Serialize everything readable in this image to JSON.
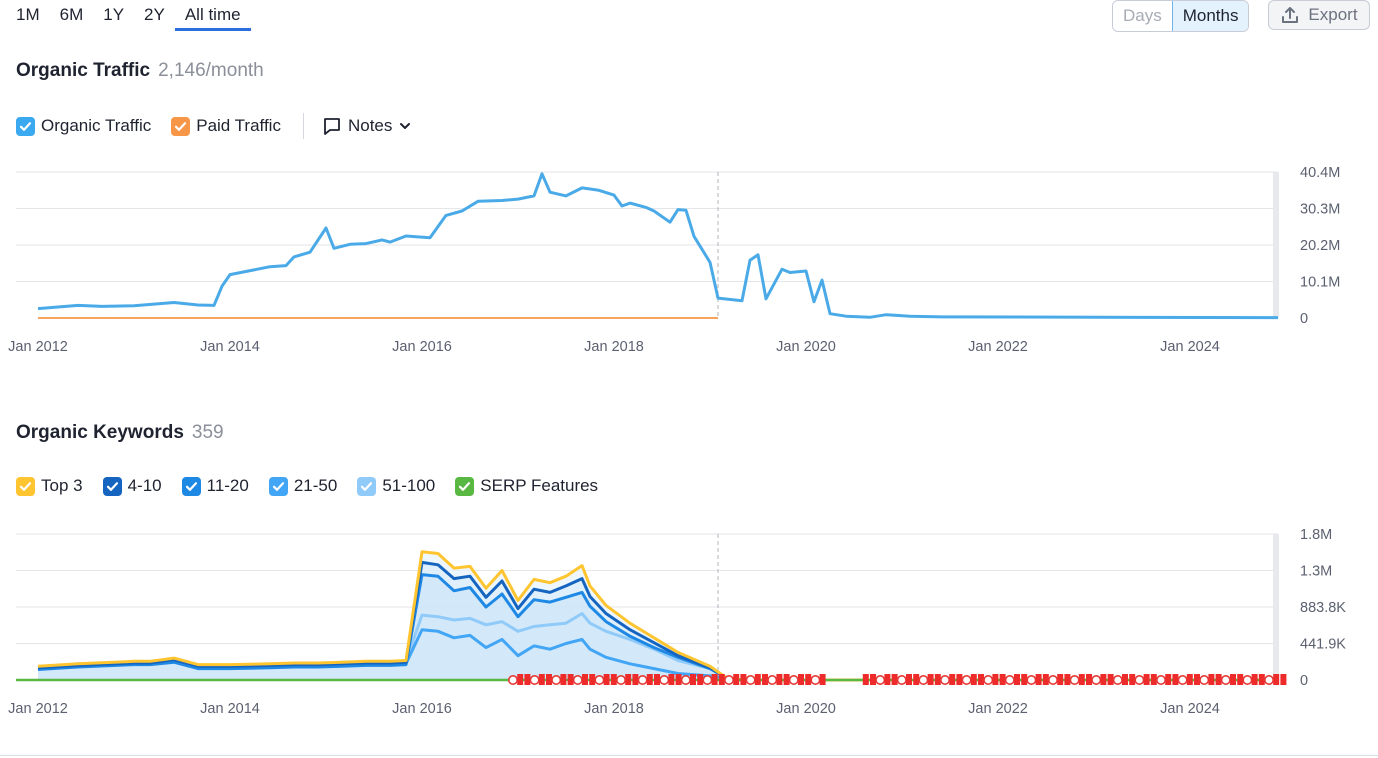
{
  "range_tabs": [
    "1M",
    "6M",
    "1Y",
    "2Y",
    "All time"
  ],
  "active_range": "All time",
  "granularity": {
    "days": "Days",
    "months": "Months",
    "active": "Months"
  },
  "export_label": "Export",
  "traffic": {
    "title": "Organic Traffic",
    "value": "2,146/month",
    "legend": [
      {
        "label": "Organic Traffic",
        "color": "#3aa9f0"
      },
      {
        "label": "Paid Traffic",
        "color": "#f79646"
      }
    ],
    "notes_label": "Notes"
  },
  "keywords": {
    "title": "Organic Keywords",
    "value": "359",
    "legend": [
      {
        "label": "Top 3",
        "color": "#ffc530"
      },
      {
        "label": "4-10",
        "color": "#1565c0"
      },
      {
        "label": "11-20",
        "color": "#1e88e5"
      },
      {
        "label": "21-50",
        "color": "#42a5f5"
      },
      {
        "label": "51-100",
        "color": "#90caf9"
      },
      {
        "label": "SERP Features",
        "color": "#59b842"
      }
    ]
  },
  "chart_data": [
    {
      "type": "line",
      "title": "Organic Traffic",
      "x_start": "2012-01",
      "x_end": "2024-12",
      "xticks": [
        "Jan 2012",
        "Jan 2014",
        "Jan 2016",
        "Jan 2018",
        "Jan 2020",
        "Jan 2022",
        "Jan 2024"
      ],
      "yticks": [
        "40.4M",
        "30.3M",
        "20.2M",
        "10.1M",
        "0"
      ],
      "ylim": [
        0,
        40.4
      ],
      "y_unit": "M",
      "marker_date": "2019-02",
      "series": [
        {
          "name": "Organic Traffic",
          "color": "#4aaae8",
          "points": [
            [
              "2012-01",
              2.6
            ],
            [
              "2012-06",
              3.5
            ],
            [
              "2012-09",
              3.2
            ],
            [
              "2013-01",
              3.4
            ],
            [
              "2013-06",
              4.3
            ],
            [
              "2013-09",
              3.6
            ],
            [
              "2013-11",
              3.5
            ],
            [
              "2013-12",
              8.8
            ],
            [
              "2014-01",
              12.0
            ],
            [
              "2014-06",
              14.2
            ],
            [
              "2014-08",
              14.5
            ],
            [
              "2014-09",
              16.9
            ],
            [
              "2014-11",
              18.2
            ],
            [
              "2015-01",
              24.9
            ],
            [
              "2015-02",
              19.3
            ],
            [
              "2015-04",
              20.4
            ],
            [
              "2015-06",
              20.6
            ],
            [
              "2015-08",
              21.6
            ],
            [
              "2015-09",
              21.0
            ],
            [
              "2015-11",
              22.7
            ],
            [
              "2016-02",
              22.2
            ],
            [
              "2016-04",
              28.4
            ],
            [
              "2016-06",
              29.6
            ],
            [
              "2016-08",
              32.3
            ],
            [
              "2016-11",
              32.5
            ],
            [
              "2017-01",
              32.9
            ],
            [
              "2017-03",
              33.8
            ],
            [
              "2017-04",
              39.9
            ],
            [
              "2017-05",
              34.8
            ],
            [
              "2017-07",
              33.8
            ],
            [
              "2017-09",
              36.0
            ],
            [
              "2017-11",
              35.4
            ],
            [
              "2018-01",
              34.0
            ],
            [
              "2018-02",
              31.0
            ],
            [
              "2018-03",
              31.8
            ],
            [
              "2018-05",
              30.6
            ],
            [
              "2018-06",
              29.6
            ],
            [
              "2018-08",
              26.5
            ],
            [
              "2018-09",
              30.0
            ],
            [
              "2018-10",
              29.8
            ],
            [
              "2018-11",
              22.6
            ],
            [
              "2019-01",
              15.4
            ],
            [
              "2019-02",
              5.5
            ],
            [
              "2019-05",
              4.8
            ],
            [
              "2019-06",
              16.0
            ],
            [
              "2019-07",
              17.5
            ],
            [
              "2019-08",
              5.3
            ],
            [
              "2019-10",
              13.5
            ],
            [
              "2019-11",
              12.6
            ],
            [
              "2020-01",
              13.0
            ],
            [
              "2020-02",
              4.5
            ],
            [
              "2020-03",
              10.5
            ],
            [
              "2020-04",
              1.2
            ],
            [
              "2020-06",
              0.5
            ],
            [
              "2020-09",
              0.2
            ],
            [
              "2020-11",
              0.9
            ],
            [
              "2021-02",
              0.5
            ],
            [
              "2021-06",
              0.3
            ],
            [
              "2024-12",
              0.1
            ]
          ]
        },
        {
          "name": "Paid Traffic",
          "color": "#f79646",
          "points": [
            [
              "2012-01",
              0
            ],
            [
              "2019-02",
              0
            ]
          ]
        }
      ]
    },
    {
      "type": "area",
      "title": "Organic Keywords",
      "x_start": "2012-01",
      "x_end": "2024-12",
      "xticks": [
        "Jan 2012",
        "Jan 2014",
        "Jan 2016",
        "Jan 2018",
        "Jan 2020",
        "Jan 2022",
        "Jan 2024"
      ],
      "yticks": [
        "1.8M",
        "1.3M",
        "883.8K",
        "441.9K",
        "0"
      ],
      "ylim": [
        0,
        1.8
      ],
      "y_unit": "M",
      "marker_date": "2019-02",
      "x": [
        "2012-01",
        "2012-06",
        "2013-01",
        "2013-03",
        "2013-06",
        "2013-09",
        "2014-01",
        "2014-06",
        "2014-09",
        "2014-12",
        "2015-03",
        "2015-06",
        "2015-08",
        "2015-09",
        "2015-11",
        "2016-01",
        "2016-03",
        "2016-05",
        "2016-07",
        "2016-09",
        "2016-11",
        "2017-01",
        "2017-03",
        "2017-05",
        "2017-07",
        "2017-09",
        "2017-10",
        "2017-12",
        "2018-03",
        "2018-06",
        "2018-09",
        "2019-01",
        "2019-03",
        "2019-05",
        "2019-07",
        "2019-09",
        "2019-11",
        "2020-01",
        "2020-04",
        "2020-06",
        "2021-01",
        "2022-01",
        "2024-12"
      ],
      "series": [
        {
          "name": "51-100",
          "color": "#90caf9",
          "values": [
            0.16,
            0.2,
            0.22,
            0.22,
            0.26,
            0.18,
            0.18,
            0.19,
            0.2,
            0.2,
            0.22,
            0.22,
            0.22,
            0.22,
            0.23,
            0.8,
            0.78,
            0.74,
            0.76,
            0.68,
            0.72,
            0.6,
            0.66,
            0.68,
            0.7,
            0.82,
            0.7,
            0.6,
            0.5,
            0.38,
            0.24,
            0.14,
            0.03,
            0,
            0,
            0,
            0,
            0,
            0,
            0,
            0,
            0,
            0
          ]
        },
        {
          "name": "21-50",
          "color": "#42a5f5",
          "values": [
            0.14,
            0.17,
            0.2,
            0.2,
            0.23,
            0.15,
            0.15,
            0.16,
            0.17,
            0.17,
            0.18,
            0.19,
            0.19,
            0.19,
            0.2,
            0.62,
            0.6,
            0.52,
            0.55,
            0.4,
            0.5,
            0.3,
            0.42,
            0.38,
            0.45,
            0.5,
            0.38,
            0.28,
            0.2,
            0.14,
            0.08,
            0.05,
            0.02,
            0,
            0,
            0,
            0,
            0,
            0,
            0,
            0,
            0,
            0
          ]
        }
      ],
      "stack_totals": [
        {
          "name": "11-20",
          "color": "#1e88e5",
          "values": [
            0.13,
            0.16,
            0.19,
            0.19,
            0.22,
            0.14,
            0.14,
            0.15,
            0.16,
            0.16,
            0.17,
            0.18,
            0.18,
            0.18,
            0.19,
            1.3,
            1.28,
            1.1,
            1.14,
            0.9,
            1.06,
            0.78,
            0.99,
            0.96,
            1.02,
            1.08,
            0.91,
            0.72,
            0.54,
            0.4,
            0.28,
            0.14,
            0.03,
            0,
            0,
            0,
            0,
            0,
            0,
            0,
            0,
            0,
            0
          ]
        },
        {
          "name": "4-10",
          "color": "#1565c0",
          "values": [
            0.15,
            0.18,
            0.21,
            0.21,
            0.25,
            0.17,
            0.17,
            0.18,
            0.19,
            0.19,
            0.2,
            0.21,
            0.21,
            0.21,
            0.22,
            1.45,
            1.42,
            1.25,
            1.28,
            1.02,
            1.22,
            0.88,
            1.12,
            1.08,
            1.16,
            1.25,
            1.03,
            0.82,
            0.62,
            0.46,
            0.3,
            0.15,
            0.03,
            0,
            0,
            0,
            0,
            0,
            0,
            0,
            0,
            0,
            0
          ]
        },
        {
          "name": "Top 3",
          "color": "#ffc530",
          "values": [
            0.17,
            0.2,
            0.23,
            0.23,
            0.27,
            0.19,
            0.19,
            0.2,
            0.21,
            0.21,
            0.22,
            0.23,
            0.23,
            0.23,
            0.24,
            1.58,
            1.56,
            1.38,
            1.4,
            1.13,
            1.35,
            0.98,
            1.24,
            1.2,
            1.28,
            1.41,
            1.16,
            0.92,
            0.7,
            0.52,
            0.34,
            0.17,
            0.03,
            0,
            0,
            0,
            0,
            0,
            0,
            0,
            0,
            0,
            0
          ]
        }
      ]
    }
  ]
}
